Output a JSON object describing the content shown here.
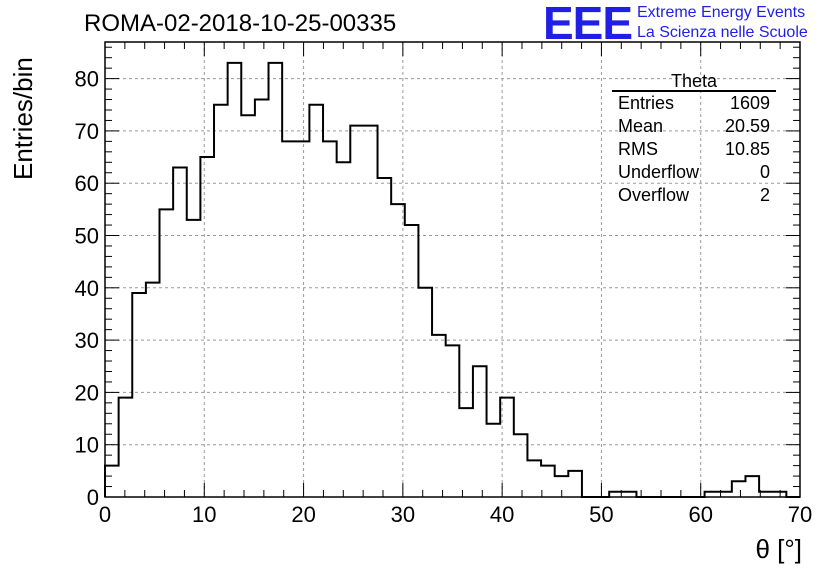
{
  "header": {
    "title": "ROMA-02-2018-10-25-00335",
    "logo_text": "EEE",
    "logo_line1": "Extreme Energy Events",
    "logo_line2": "La Scienza nelle Scuole"
  },
  "stats_box": {
    "title": "Theta",
    "rows": [
      {
        "label": "Entries",
        "value": "1609"
      },
      {
        "label": "Mean",
        "value": "20.59"
      },
      {
        "label": "RMS",
        "value": "10.85"
      },
      {
        "label": "Underflow",
        "value": "0"
      },
      {
        "label": "Overflow",
        "value": "2"
      }
    ]
  },
  "chart_data": {
    "type": "histogram",
    "title": "ROMA-02-2018-10-25-00335",
    "xlabel": "θ [°]",
    "ylabel": "Entries/bin",
    "xlim": [
      0,
      70
    ],
    "ylim": [
      0,
      87
    ],
    "bin_width": 1.3725,
    "xticks": [
      0,
      10,
      20,
      30,
      40,
      50,
      60,
      70
    ],
    "yticks": [
      0,
      10,
      20,
      30,
      40,
      50,
      60,
      70,
      80
    ],
    "grid": true,
    "values": [
      6,
      19,
      39,
      41,
      55,
      63,
      53,
      65,
      75,
      83,
      73,
      76,
      83,
      68,
      68,
      75,
      68,
      64,
      71,
      71,
      61,
      56,
      52,
      40,
      31,
      29,
      17,
      25,
      14,
      19,
      12,
      7,
      6,
      4,
      5,
      0,
      0,
      1,
      1,
      0,
      0,
      0,
      0,
      0,
      1,
      1,
      3,
      4,
      1,
      1,
      0
    ],
    "line_color": "#000000",
    "grid_color": "#9a9a9a"
  }
}
